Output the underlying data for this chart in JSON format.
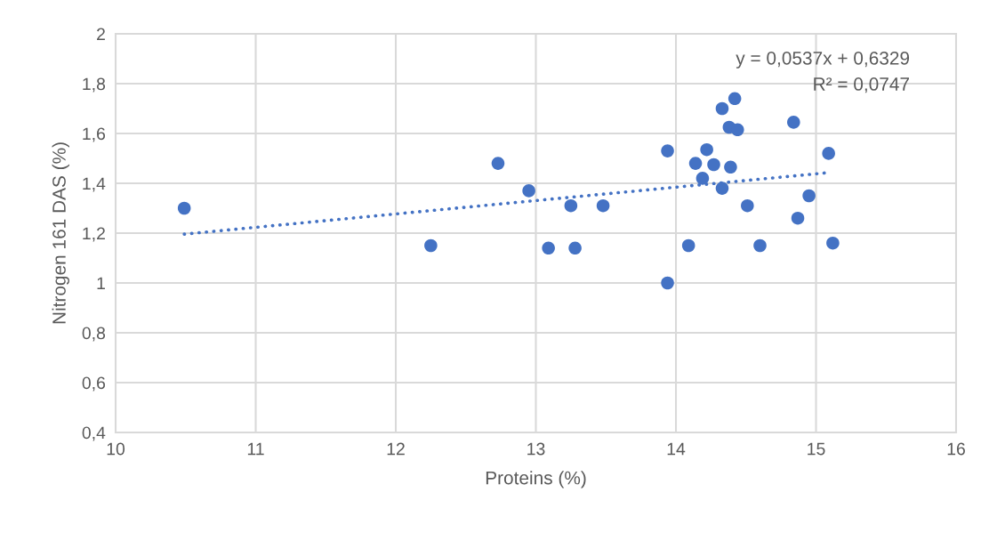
{
  "chart_data": {
    "type": "scatter",
    "xlabel": "Proteins (%)",
    "ylabel": "Nitrogen 161 DAS (%)",
    "xlim": [
      10,
      16
    ],
    "xticks": [
      10,
      11,
      12,
      13,
      14,
      15,
      16
    ],
    "ylim": [
      0.4,
      2
    ],
    "yticks": [
      {
        "value": 0.4,
        "label": "0,4"
      },
      {
        "value": 0.6,
        "label": "0,6"
      },
      {
        "value": 0.8,
        "label": "0,8"
      },
      1,
      {
        "value": 1.2,
        "label": "1,2"
      },
      {
        "value": 1.4,
        "label": "1,4"
      },
      {
        "value": 1.6,
        "label": "1,6"
      },
      {
        "value": 1.8,
        "label": "1,8"
      },
      2
    ],
    "grid": true,
    "annotations": [
      "y = 0,0537x + 0,6329",
      "R² = 0,0747"
    ],
    "series": [
      {
        "marker": "circle",
        "color": "#4472c4",
        "x": [
          10.49,
          12.25,
          12.73,
          12.95,
          13.09,
          13.25,
          13.28,
          13.48,
          13.94,
          13.94,
          14.09,
          14.14,
          14.19,
          14.22,
          14.27,
          14.33,
          14.33,
          14.38,
          14.39,
          14.42,
          14.44,
          14.51,
          14.6,
          14.84,
          14.87,
          14.95,
          15.09,
          15.12
        ],
        "values": [
          1.3,
          1.15,
          1.48,
          1.37,
          1.14,
          1.31,
          1.14,
          1.31,
          1.53,
          1.0,
          1.15,
          1.48,
          1.42,
          1.535,
          1.475,
          1.38,
          1.7,
          1.625,
          1.465,
          1.74,
          1.615,
          1.31,
          1.15,
          1.645,
          1.26,
          1.35,
          1.52,
          1.16
        ]
      },
      {
        "type": "line",
        "marker": "none",
        "color": "#4472c4",
        "line_style": "dotted",
        "x": [
          10.49,
          15.09
        ],
        "values": [
          1.196,
          1.443
        ]
      }
    ]
  }
}
